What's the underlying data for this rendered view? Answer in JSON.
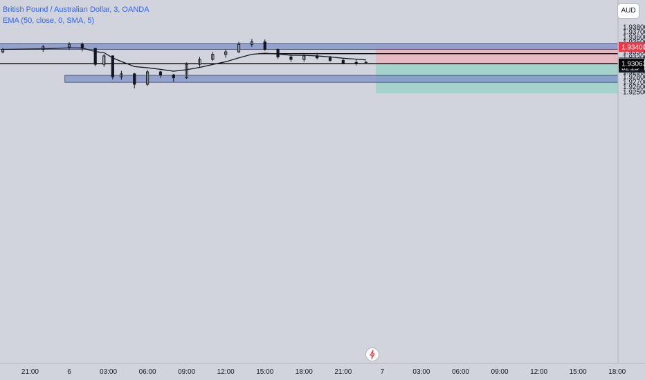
{
  "header": {
    "title": "British Pound / Australian Dollar, 3, OANDA",
    "indicator": "EMA (50, close, 0, SMA, 5)"
  },
  "currency": "AUD",
  "price_scale": {
    "ticks": [
      "1.93800",
      "1.93700",
      "1.93600",
      "1.93500",
      "1.93300",
      "1.93200",
      "1.92900",
      "1.92800",
      "1.92700",
      "1.92600",
      "1.92500"
    ],
    "tick_values": [
      1.938,
      1.937,
      1.936,
      1.935,
      1.933,
      1.932,
      1.929,
      1.928,
      1.927,
      1.926,
      1.925
    ],
    "labels": [
      {
        "id": "stop",
        "text": "1.93400",
        "value": 1.934,
        "bg": "#f23645",
        "fg": "#ffffff"
      },
      {
        "id": "last",
        "text": "1.93087",
        "value": 1.93087,
        "bg": "#131722",
        "fg": "#ffffff"
      },
      {
        "id": "countdown",
        "text": "02:25",
        "value": 1.92983,
        "bg": "#131722",
        "fg": "#ffffff"
      },
      {
        "id": "entry",
        "text": "1.93079",
        "value": 1.93079,
        "bg": "#787b86",
        "fg": "#ffffff"
      },
      {
        "id": "level",
        "text": "1.93063",
        "value": 1.93063,
        "bg": "#000000",
        "fg": "#ffffff"
      }
    ]
  },
  "time_axis": {
    "labels": [
      "21:00",
      "6",
      "03:00",
      "06:00",
      "09:00",
      "12:00",
      "15:00",
      "18:00",
      "21:00",
      "7",
      "03:00",
      "06:00",
      "09:00",
      "12:00",
      "15:00",
      "18:00"
    ]
  },
  "colors": {
    "background": "#d1d4dc",
    "zone": "#7b8ec7",
    "zone_opacity": 0.72,
    "stop_zone": "#f7a3ae",
    "target_zone": "#95d3c6",
    "candles": "#131722",
    "ema": "#131722",
    "label_blue": "#2962ff"
  },
  "chart_data": {
    "type": "candlestick",
    "symbol": "British Pound / Australian Dollar",
    "interval": "3",
    "source": "OANDA",
    "y_range": [
      1.9247,
      1.9388
    ],
    "x_range": [
      "5 20:00",
      "7 18:30"
    ],
    "ema": {
      "period": 50,
      "source": "close",
      "smoothing": "SMA",
      "smoothing_length": 5
    },
    "series": [
      {
        "x": "5 19:00",
        "o": 1.933,
        "c": 1.9335,
        "h": 1.9338,
        "l": 1.9327
      },
      {
        "x": "5 22:00",
        "o": 1.9335,
        "c": 1.934,
        "h": 1.9344,
        "l": 1.933
      },
      {
        "x": "6 00:00",
        "o": 1.934,
        "c": 1.9345,
        "h": 1.9349,
        "l": 1.9334
      },
      {
        "x": "6 01:00",
        "o": 1.9345,
        "c": 1.9337,
        "h": 1.9349,
        "l": 1.9331
      },
      {
        "x": "6 02:00",
        "o": 1.9337,
        "c": 1.9305,
        "h": 1.9338,
        "l": 1.9301
      },
      {
        "x": "6 02:40",
        "o": 1.9305,
        "c": 1.9322,
        "h": 1.9326,
        "l": 1.93
      },
      {
        "x": "6 03:20",
        "o": 1.9322,
        "c": 1.928,
        "h": 1.9323,
        "l": 1.9275
      },
      {
        "x": "6 04:00",
        "o": 1.928,
        "c": 1.9286,
        "h": 1.9292,
        "l": 1.9274
      },
      {
        "x": "6 05:00",
        "o": 1.9286,
        "c": 1.9265,
        "h": 1.9288,
        "l": 1.9257
      },
      {
        "x": "6 06:00",
        "o": 1.9265,
        "c": 1.929,
        "h": 1.9294,
        "l": 1.9262
      },
      {
        "x": "6 07:00",
        "o": 1.929,
        "c": 1.9284,
        "h": 1.9292,
        "l": 1.9278
      },
      {
        "x": "6 08:00",
        "o": 1.9284,
        "c": 1.9278,
        "h": 1.9286,
        "l": 1.927
      },
      {
        "x": "6 09:00",
        "o": 1.9278,
        "c": 1.9305,
        "h": 1.9309,
        "l": 1.9276
      },
      {
        "x": "6 10:00",
        "o": 1.9305,
        "c": 1.9315,
        "h": 1.932,
        "l": 1.93
      },
      {
        "x": "6 11:00",
        "o": 1.9315,
        "c": 1.9325,
        "h": 1.933,
        "l": 1.9312
      },
      {
        "x": "6 12:00",
        "o": 1.9325,
        "c": 1.933,
        "h": 1.9335,
        "l": 1.9318
      },
      {
        "x": "6 13:00",
        "o": 1.933,
        "c": 1.9345,
        "h": 1.935,
        "l": 1.9328
      },
      {
        "x": "6 14:00",
        "o": 1.9345,
        "c": 1.935,
        "h": 1.9356,
        "l": 1.934
      },
      {
        "x": "6 15:00",
        "o": 1.935,
        "c": 1.9335,
        "h": 1.9355,
        "l": 1.9332
      },
      {
        "x": "6 16:00",
        "o": 1.9335,
        "c": 1.932,
        "h": 1.9337,
        "l": 1.9316
      },
      {
        "x": "6 17:00",
        "o": 1.932,
        "c": 1.9315,
        "h": 1.9325,
        "l": 1.931
      },
      {
        "x": "6 18:00",
        "o": 1.9315,
        "c": 1.9322,
        "h": 1.9325,
        "l": 1.931
      },
      {
        "x": "6 19:00",
        "o": 1.9322,
        "c": 1.9318,
        "h": 1.9328,
        "l": 1.9315
      },
      {
        "x": "6 20:00",
        "o": 1.9318,
        "c": 1.9313,
        "h": 1.9322,
        "l": 1.931
      },
      {
        "x": "6 21:00",
        "o": 1.9313,
        "c": 1.9308,
        "h": 1.9316,
        "l": 1.9305
      },
      {
        "x": "6 22:00",
        "o": 1.9308,
        "c": 1.9309,
        "h": 1.9315,
        "l": 1.9303
      },
      {
        "x": "6 22:45",
        "o": 1.9309,
        "c": 1.93087,
        "h": 1.9312,
        "l": 1.9306
      }
    ],
    "drawings": [
      {
        "type": "zone",
        "name": "Upper supply zone",
        "y1": 1.9347,
        "y2": 1.9335,
        "x1": "5 19:00",
        "x2": "extend"
      },
      {
        "type": "zone",
        "name": "Lower demand zone",
        "y1": 1.9283,
        "y2": 1.9269,
        "x1": "5 23:40",
        "x2": "extend"
      },
      {
        "type": "hline",
        "name": "Resistance level",
        "y": 1.93265,
        "x1": "6 14:30",
        "x2": "extend"
      },
      {
        "type": "hline",
        "name": "Support level",
        "y": 1.93063,
        "x1": "5 19:00",
        "x2": "extend"
      },
      {
        "type": "short_position",
        "entry": 1.93079,
        "stop": 1.934,
        "target": 1.9247,
        "x1": "6 23:30",
        "x2": "extend"
      }
    ]
  }
}
